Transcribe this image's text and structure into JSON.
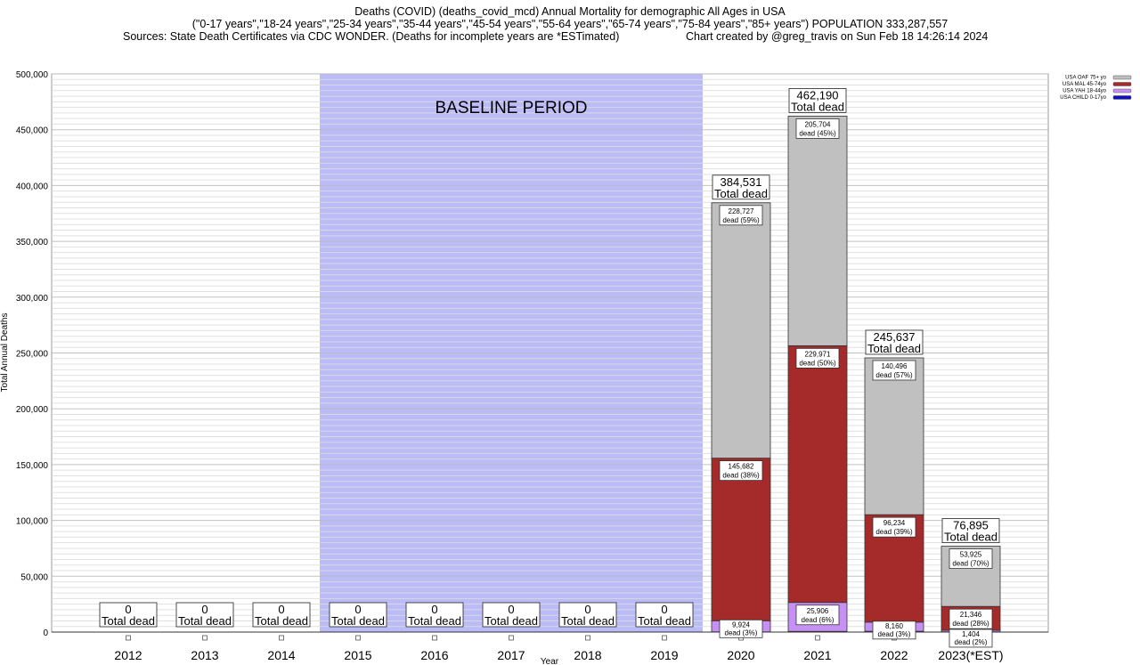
{
  "chart_data": {
    "type": "bar",
    "stacked": true,
    "title": "Deaths (COVID) (deaths_covid_mcd) Annual Mortality for demographic All Ages in USA",
    "subtitle": "(\"0-17 years\",\"18-24 years\",\"25-34 years\",\"35-44 years\",\"45-54 years\",\"55-64 years\",\"65-74 years\",\"75-84 years\",\"85+ years\") POPULATION 333,287,557",
    "sources": "Sources: State Death Certificates via CDC WONDER. (Deaths for incomplete years are *ESTimated)",
    "credit": "Chart created by @greg_travis on Sun Feb 18 14:26:14 2024",
    "xlabel": "Year",
    "ylabel": "Total Annual Deaths",
    "ylim": [
      0,
      500000
    ],
    "yticks": [
      "0",
      "50,000",
      "100,000",
      "150,000",
      "200,000",
      "250,000",
      "300,000",
      "350,000",
      "400,000",
      "450,000",
      "500,000"
    ],
    "grid": true,
    "legend_position": "top-right",
    "baseline_label": "BASELINE PERIOD",
    "baseline_range": [
      "2015",
      "2019"
    ],
    "baseline_color": "#bbbbf7",
    "categories": [
      "2012",
      "2013",
      "2014",
      "2015",
      "2016",
      "2017",
      "2018",
      "2019",
      "2020",
      "2021",
      "2022",
      "2023(*EST)"
    ],
    "series": [
      {
        "name": "USA CHILD 0-17yo",
        "color": "#1010c0",
        "values": [
          0,
          0,
          0,
          0,
          0,
          0,
          0,
          0,
          198,
          609,
          747,
          220
        ]
      },
      {
        "name": "USA YAH 18-44yo",
        "color": "#c690f5",
        "values": [
          0,
          0,
          0,
          0,
          0,
          0,
          0,
          0,
          9924,
          25906,
          8160,
          1404
        ]
      },
      {
        "name": "USA MAL 45-74yo",
        "color": "#a52a2a",
        "values": [
          0,
          0,
          0,
          0,
          0,
          0,
          0,
          0,
          145682,
          229971,
          96234,
          21346
        ]
      },
      {
        "name": "USA OAF 75+ yo",
        "color": "#c0c0c0",
        "values": [
          0,
          0,
          0,
          0,
          0,
          0,
          0,
          0,
          228727,
          205704,
          140496,
          53925
        ]
      }
    ],
    "totals": [
      0,
      0,
      0,
      0,
      0,
      0,
      0,
      0,
      384531,
      462190,
      245637,
      76895
    ],
    "total_labels": [
      "0",
      "0",
      "0",
      "0",
      "0",
      "0",
      "0",
      "0",
      "384,531",
      "462,190",
      "245,637",
      "76,895"
    ],
    "total_suffix": "Total dead",
    "segment_labels": {
      "2020": [
        [
          "9,924",
          "dead (3%)"
        ],
        [
          "145,682",
          "dead (38%)"
        ],
        [
          "228,727",
          "dead (59%)"
        ]
      ],
      "2021": [
        [
          "25,906",
          "dead (6%)"
        ],
        [
          "229,971",
          "dead (50%)"
        ],
        [
          "205,704",
          "dead (45%)"
        ]
      ],
      "2022": [
        [
          "8,160",
          "dead (3%)"
        ],
        [
          "96,234",
          "dead (39%)"
        ],
        [
          "140,496",
          "dead (57%)"
        ]
      ],
      "2023(*EST)": [
        [
          "1,404",
          "dead (2%)"
        ],
        [
          "21,346",
          "dead (28%)"
        ],
        [
          "53,925",
          "dead (70%)"
        ]
      ]
    }
  }
}
